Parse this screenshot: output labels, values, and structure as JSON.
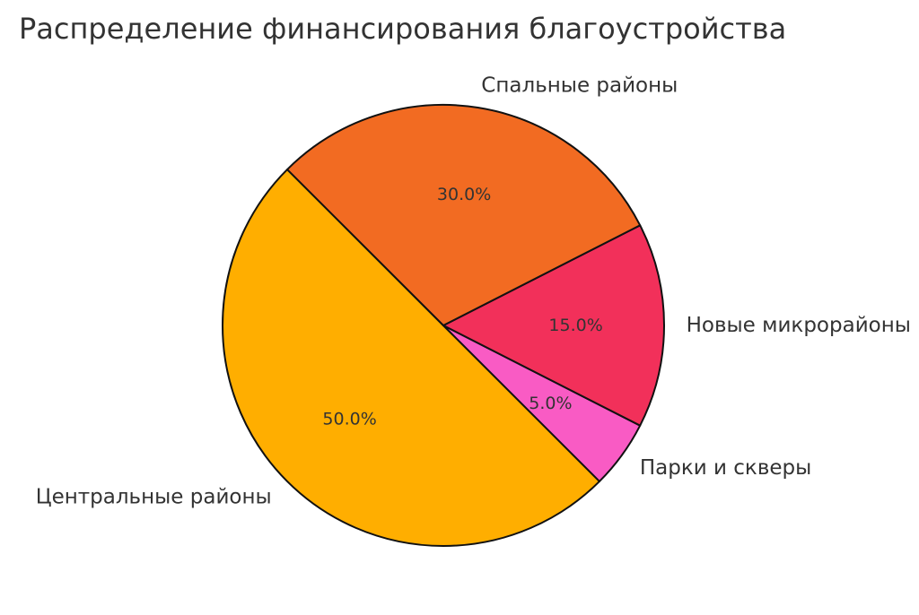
{
  "chart_data": {
    "type": "pie",
    "title": "Распределение финансирования благоустройства",
    "start_angle_deg": 135,
    "direction": "counterclockwise",
    "slices": [
      {
        "label": "Центральные районы",
        "value": 50,
        "pct_label": "50.0%",
        "color": "#FFAE00"
      },
      {
        "label": "Парки и скверы",
        "value": 5,
        "pct_label": "5.0%",
        "color": "#F95BC4"
      },
      {
        "label": "Новые микрорайоны",
        "value": 15,
        "pct_label": "15.0%",
        "color": "#F2305A"
      },
      {
        "label": "Спальные районы",
        "value": 30,
        "pct_label": "30.0%",
        "color": "#F26B22"
      }
    ]
  }
}
